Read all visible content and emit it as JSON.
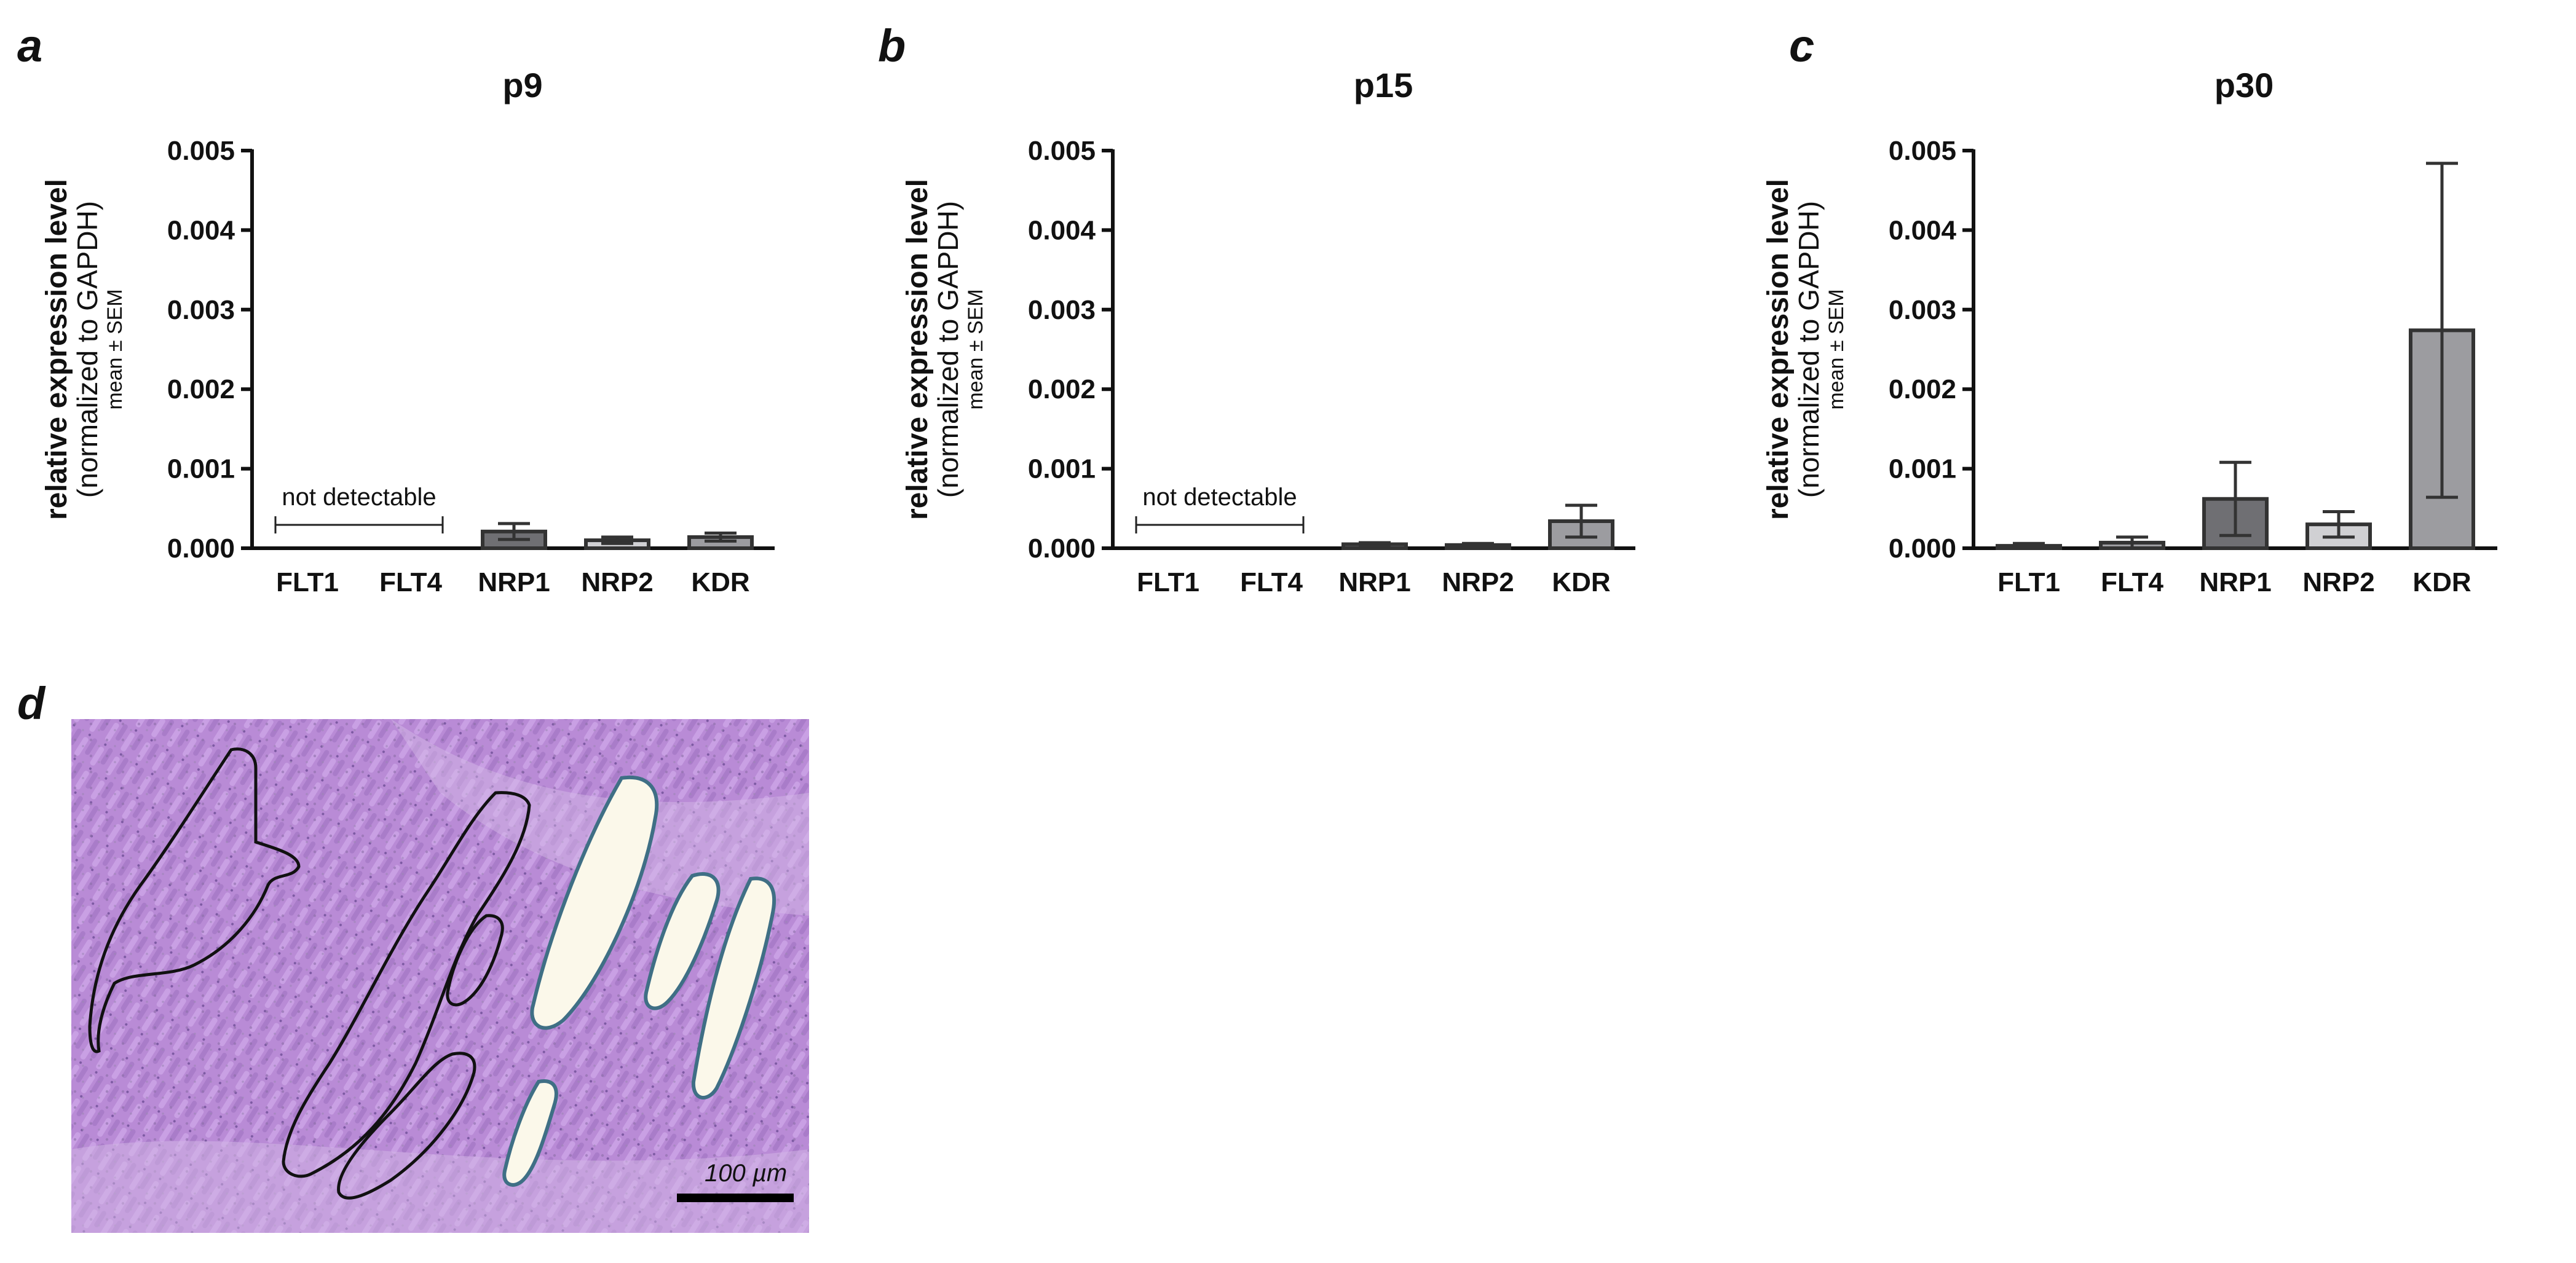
{
  "figure": {
    "panel_d": {
      "letter": "d",
      "scale_label": "100 µm"
    }
  },
  "chart_data": [
    {
      "type": "bar",
      "panel": "a",
      "title": "p9",
      "ylabel": [
        "relative expression level",
        "(normalized to GAPDH)",
        "mean ± SEM"
      ],
      "categories": [
        "FLT1",
        "FLT4",
        "NRP1",
        "NRP2",
        "KDR"
      ],
      "values": [
        0,
        0,
        0.00021,
        0.0001,
        0.00014
      ],
      "errors": [
        0,
        0,
        0.0001,
        4e-05,
        5e-05
      ],
      "bar_colors": [
        "#9c9ca0",
        "#9c9ca0",
        "#6f6f73",
        "#d0d0d3",
        "#9c9ca0"
      ],
      "ylim": [
        0,
        0.005
      ],
      "yticks": [
        "0.000",
        "0.001",
        "0.002",
        "0.003",
        "0.004",
        "0.005"
      ],
      "annotation": "not detectable",
      "annotation_span": [
        0,
        1
      ],
      "grid": false
    },
    {
      "type": "bar",
      "panel": "b",
      "title": "p15",
      "ylabel": [
        "relative expression level",
        "(normalized to GAPDH)",
        "mean ± SEM"
      ],
      "categories": [
        "FLT1",
        "FLT4",
        "NRP1",
        "NRP2",
        "KDR"
      ],
      "values": [
        0,
        0,
        5e-05,
        4e-05,
        0.00034
      ],
      "errors": [
        0,
        0,
        2e-05,
        2e-05,
        0.0002
      ],
      "bar_colors": [
        "#9c9ca0",
        "#9c9ca0",
        "#6f6f73",
        "#d0d0d3",
        "#9c9ca0"
      ],
      "ylim": [
        0,
        0.005
      ],
      "yticks": [
        "0.000",
        "0.001",
        "0.002",
        "0.003",
        "0.004",
        "0.005"
      ],
      "annotation": "not detectable",
      "annotation_span": [
        0,
        1
      ],
      "grid": false
    },
    {
      "type": "bar",
      "panel": "c",
      "title": "p30",
      "ylabel": [
        "relative expression level",
        "(normalized to GAPDH)",
        "mean ± SEM"
      ],
      "categories": [
        "FLT1",
        "FLT4",
        "NRP1",
        "NRP2",
        "KDR"
      ],
      "values": [
        3e-05,
        7e-05,
        0.00062,
        0.0003,
        0.00274
      ],
      "errors": [
        3e-05,
        7e-05,
        0.00046,
        0.00016,
        0.0021
      ],
      "bar_colors": [
        "#9c9ca0",
        "#9c9ca0",
        "#6f6f73",
        "#d0d0d3",
        "#9c9ca0"
      ],
      "ylim": [
        0,
        0.005
      ],
      "yticks": [
        "0.000",
        "0.001",
        "0.002",
        "0.003",
        "0.004",
        "0.005"
      ],
      "grid": false
    }
  ]
}
